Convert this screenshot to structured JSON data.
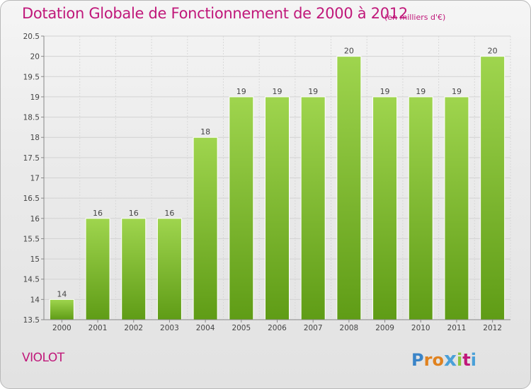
{
  "header": {
    "title": "Dotation Globale de Fonctionnement de 2000 à 2012",
    "unit_note": "(en milliers d'€)"
  },
  "footer": {
    "commune": "VIOLOT",
    "logo_letters": [
      "P",
      "r",
      "o",
      "x",
      "i",
      "t",
      "i"
    ],
    "logo_colors": [
      "#3a84c8",
      "#e0821f",
      "#e0821f",
      "#4aa0d8",
      "#8cc63f",
      "#c0187a",
      "#4aa0d8"
    ]
  },
  "chart_data": {
    "type": "bar",
    "categories": [
      "2000",
      "2001",
      "2002",
      "2003",
      "2004",
      "2005",
      "2006",
      "2007",
      "2008",
      "2009",
      "2010",
      "2011",
      "2012"
    ],
    "values": [
      14,
      16,
      16,
      16,
      18,
      19,
      19,
      19,
      20,
      19,
      19,
      19,
      20
    ],
    "data_labels": [
      "14",
      "16",
      "16",
      "16",
      "18",
      "19",
      "19",
      "19",
      "20",
      "19",
      "19",
      "19",
      "20"
    ],
    "bar_tops": [
      14,
      16,
      16,
      16,
      18,
      19,
      19,
      19,
      20,
      19,
      19,
      19,
      20
    ],
    "y_ticks": [
      "13.5",
      "14",
      "14.5",
      "15",
      "15.5",
      "16",
      "16.5",
      "17",
      "17.5",
      "18",
      "18.5",
      "19",
      "19.5",
      "20",
      "20.5"
    ],
    "ylim": [
      13.5,
      20.5
    ],
    "grid": true,
    "bar_color": "#7cbf2e"
  }
}
